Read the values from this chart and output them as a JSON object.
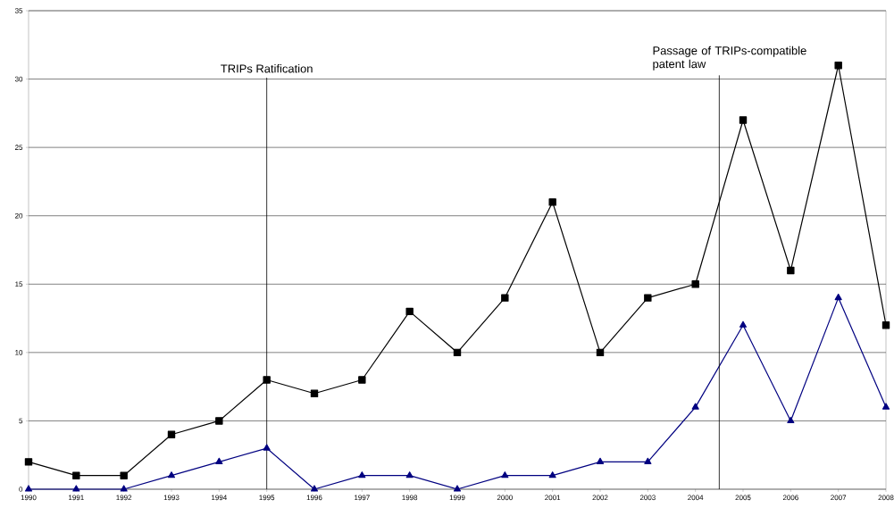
{
  "chart_data": {
    "type": "line",
    "x": [
      1990,
      1991,
      1992,
      1993,
      1994,
      1995,
      1996,
      1997,
      1998,
      1999,
      2000,
      2001,
      2002,
      2003,
      2004,
      2005,
      2006,
      2007,
      2008
    ],
    "series": [
      {
        "color": "#000000",
        "marker": "square",
        "values": [
          2,
          1,
          1,
          4,
          5,
          8,
          7,
          8,
          13,
          10,
          14,
          21,
          10,
          14,
          15,
          27,
          16,
          31,
          12
        ]
      },
      {
        "color": "#000080",
        "marker": "triangle",
        "values": [
          0,
          0,
          0,
          1,
          2,
          3,
          0,
          1,
          1,
          0,
          1,
          1,
          2,
          2,
          6,
          12,
          5,
          14,
          6
        ]
      }
    ],
    "xlim": [
      1990,
      2008
    ],
    "xticks": [
      1990,
      1991,
      1992,
      1993,
      1994,
      1995,
      1996,
      1997,
      1998,
      1999,
      2000,
      2001,
      2002,
      2003,
      2004,
      2005,
      2006,
      2007,
      2008
    ],
    "ylim": [
      0,
      35
    ],
    "yticks": [
      0,
      5,
      10,
      15,
      20,
      25,
      30,
      35
    ],
    "grid": "y",
    "line_style": "solid",
    "ref_lines": [
      {
        "axis": "x",
        "value": 1995,
        "label": "TRIPs Ratification",
        "color": "#000000"
      },
      {
        "axis": "x",
        "value": 2004.5,
        "label": "Passage of TRIPs-compatible patent law",
        "color": "#000000"
      }
    ]
  }
}
